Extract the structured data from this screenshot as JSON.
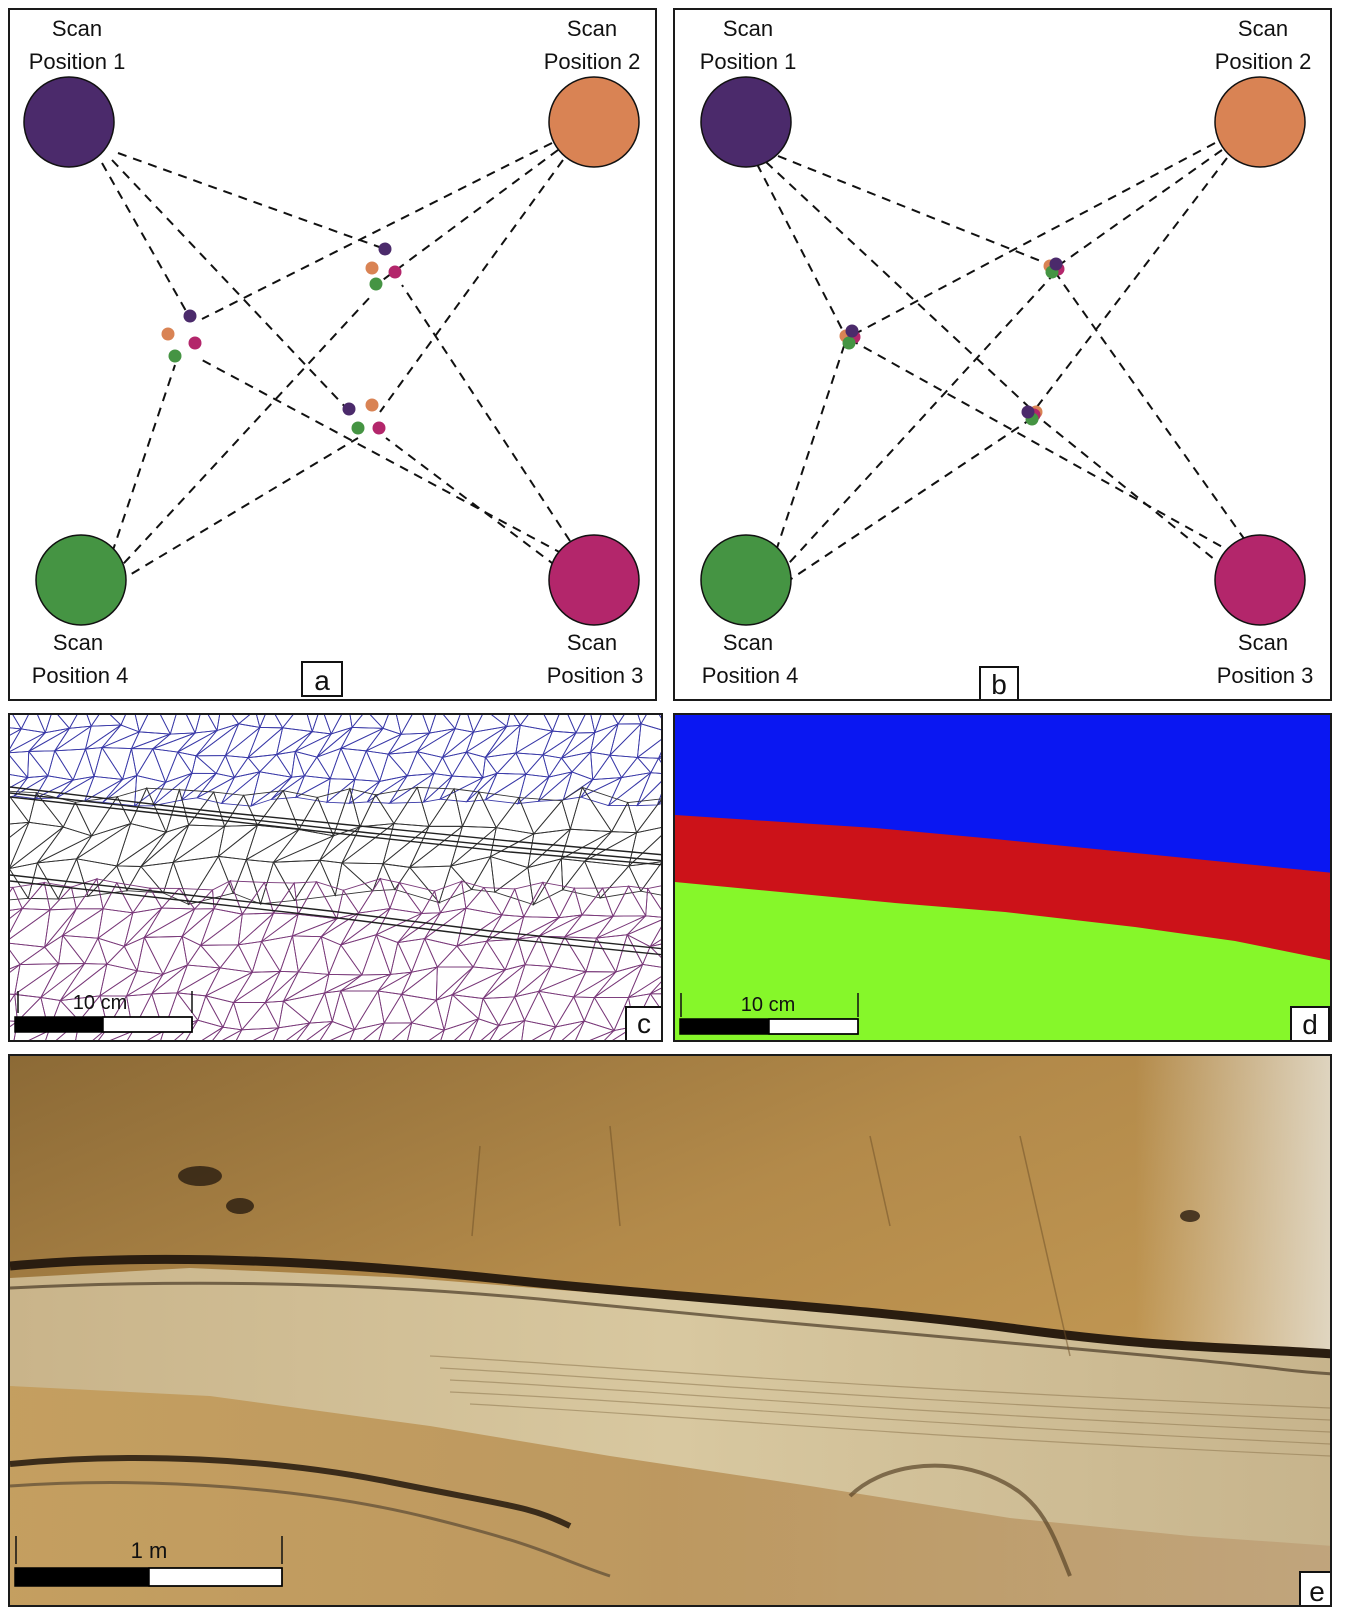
{
  "scan_label": "Scan",
  "positions": [
    {
      "label": "Position 1",
      "color": "#4b2a6b"
    },
    {
      "label": "Position 2",
      "color": "#d98354"
    },
    {
      "label": "Position 3",
      "color": "#b3266b"
    },
    {
      "label": "Position 4",
      "color": "#459443"
    }
  ],
  "panel_letters": {
    "a": "a",
    "b": "b",
    "c": "c",
    "d": "d",
    "e": "e"
  },
  "panel_d_colors": {
    "top": "#0a17f2",
    "middle": "#cc1219",
    "bottom": "#86f72a"
  },
  "scale_bars": {
    "c": "10 cm",
    "d": "10 cm",
    "e": "1 m"
  }
}
